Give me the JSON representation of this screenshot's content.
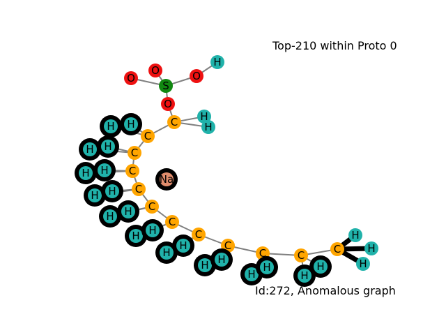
{
  "title": "Top-210 within Proto 0",
  "footer": "Id:272, Anomalous graph",
  "colors": {
    "O": "#ee1111",
    "S": "#118811",
    "C": "#ffa500",
    "H": "#20b2aa",
    "Na": "#e08c6c",
    "edge": "#808080",
    "highlight": "#000000"
  },
  "atoms": [
    {
      "id": "O1",
      "el": "O",
      "label": "O"
    },
    {
      "id": "O2",
      "el": "O",
      "label": "O"
    },
    {
      "id": "O3",
      "el": "O",
      "label": "O"
    },
    {
      "id": "H0",
      "el": "H",
      "label": "H"
    },
    {
      "id": "S",
      "el": "S",
      "label": "S"
    },
    {
      "id": "O4",
      "el": "O",
      "label": "O"
    },
    {
      "id": "C1",
      "el": "C",
      "label": "C"
    },
    {
      "id": "H1a",
      "el": "H",
      "label": "H"
    },
    {
      "id": "H1b",
      "el": "H",
      "label": "H"
    },
    {
      "id": "C2",
      "el": "C",
      "label": "C"
    },
    {
      "id": "H2a",
      "el": "H",
      "label": "H",
      "hl": true
    },
    {
      "id": "H2b",
      "el": "H",
      "label": "H",
      "hl": true
    },
    {
      "id": "C3",
      "el": "C",
      "label": "C"
    },
    {
      "id": "H3a",
      "el": "H",
      "label": "H",
      "hl": true
    },
    {
      "id": "H3b",
      "el": "H",
      "label": "H",
      "hl": true
    },
    {
      "id": "C4",
      "el": "C",
      "label": "C"
    },
    {
      "id": "H4a",
      "el": "H",
      "label": "H",
      "hl": true
    },
    {
      "id": "H4b",
      "el": "H",
      "label": "H",
      "hl": true
    },
    {
      "id": "C5",
      "el": "C",
      "label": "C"
    },
    {
      "id": "H5a",
      "el": "H",
      "label": "H",
      "hl": true
    },
    {
      "id": "H5b",
      "el": "H",
      "label": "H",
      "hl": true
    },
    {
      "id": "Na",
      "el": "Na",
      "label": "Na",
      "hl": true
    },
    {
      "id": "C6",
      "el": "C",
      "label": "C"
    },
    {
      "id": "H6a",
      "el": "H",
      "label": "H",
      "hl": true
    },
    {
      "id": "H6b",
      "el": "H",
      "label": "H",
      "hl": true
    },
    {
      "id": "C7",
      "el": "C",
      "label": "C"
    },
    {
      "id": "H7a",
      "el": "H",
      "label": "H",
      "hl": true
    },
    {
      "id": "H7b",
      "el": "H",
      "label": "H",
      "hl": true
    },
    {
      "id": "C8",
      "el": "C",
      "label": "C"
    },
    {
      "id": "H8a",
      "el": "H",
      "label": "H",
      "hl": true
    },
    {
      "id": "H8b",
      "el": "H",
      "label": "H",
      "hl": true
    },
    {
      "id": "C9",
      "el": "C",
      "label": "C"
    },
    {
      "id": "H9a",
      "el": "H",
      "label": "H",
      "hl": true
    },
    {
      "id": "H9b",
      "el": "H",
      "label": "H",
      "hl": true
    },
    {
      "id": "C10",
      "el": "C",
      "label": "C"
    },
    {
      "id": "H10a",
      "el": "H",
      "label": "H",
      "hl": true
    },
    {
      "id": "H10b",
      "el": "H",
      "label": "H",
      "hl": true
    },
    {
      "id": "C11",
      "el": "C",
      "label": "C"
    },
    {
      "id": "H11a",
      "el": "H",
      "label": "H",
      "hl": true
    },
    {
      "id": "H11b",
      "el": "H",
      "label": "H",
      "hl": true
    },
    {
      "id": "C12",
      "el": "C",
      "label": "C"
    },
    {
      "id": "H12a",
      "el": "H",
      "label": "H"
    },
    {
      "id": "H12b",
      "el": "H",
      "label": "H"
    },
    {
      "id": "H12c",
      "el": "H",
      "label": "H"
    }
  ],
  "bonds": [
    [
      "S",
      "O1"
    ],
    [
      "S",
      "O2"
    ],
    [
      "S",
      "O3"
    ],
    [
      "O3",
      "H0"
    ],
    [
      "S",
      "O4"
    ],
    [
      "O4",
      "C1"
    ],
    [
      "C1",
      "H1a"
    ],
    [
      "C1",
      "H1b"
    ],
    [
      "C1",
      "C2"
    ],
    [
      "C2",
      "H2a"
    ],
    [
      "C2",
      "H2b"
    ],
    [
      "C2",
      "C3"
    ],
    [
      "C3",
      "H3a"
    ],
    [
      "C3",
      "H3b"
    ],
    [
      "C3",
      "C4"
    ],
    [
      "C4",
      "H4a"
    ],
    [
      "C4",
      "H4b"
    ],
    [
      "C4",
      "C5"
    ],
    [
      "C5",
      "H5a"
    ],
    [
      "C5",
      "H5b"
    ],
    [
      "C5",
      "C6"
    ],
    [
      "C6",
      "H6a"
    ],
    [
      "C6",
      "H6b"
    ],
    [
      "C6",
      "C7"
    ],
    [
      "C7",
      "H7a"
    ],
    [
      "C7",
      "H7b"
    ],
    [
      "C7",
      "C8"
    ],
    [
      "C8",
      "H8a"
    ],
    [
      "C8",
      "H8b"
    ],
    [
      "C8",
      "C9"
    ],
    [
      "C9",
      "H9a"
    ],
    [
      "C9",
      "H9b"
    ],
    [
      "C9",
      "C10"
    ],
    [
      "C10",
      "H10a"
    ],
    [
      "C10",
      "H10b"
    ],
    [
      "C10",
      "C11"
    ],
    [
      "C11",
      "H11a"
    ],
    [
      "C11",
      "H11b"
    ],
    [
      "C11",
      "C12"
    ],
    [
      "C12",
      "H12a",
      true
    ],
    [
      "C12",
      "H12b",
      true
    ],
    [
      "C12",
      "H12c",
      true
    ]
  ]
}
